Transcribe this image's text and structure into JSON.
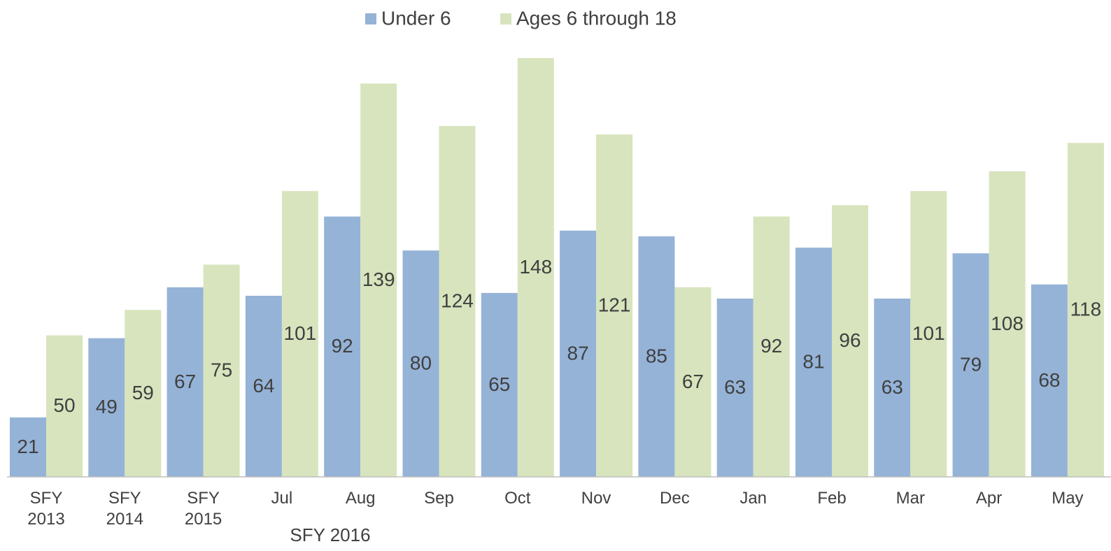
{
  "chart_data": {
    "type": "bar",
    "categories": [
      "SFY 2013",
      "SFY 2014",
      "SFY 2015",
      "Jul",
      "Aug",
      "Sep",
      "Oct",
      "Nov",
      "Dec",
      "Jan",
      "Feb",
      "Mar",
      "Apr",
      "May"
    ],
    "group_label": "SFY 2016",
    "series": [
      {
        "name": "Under 6",
        "color": "#95b3d7",
        "values": [
          21,
          49,
          67,
          64,
          92,
          80,
          65,
          87,
          85,
          63,
          81,
          63,
          79,
          68
        ]
      },
      {
        "name": "Ages 6 through 18",
        "color": "#d7e4bd",
        "values": [
          50,
          59,
          75,
          101,
          139,
          124,
          148,
          121,
          67,
          92,
          96,
          101,
          108,
          118
        ]
      }
    ],
    "legend": "top"
  }
}
